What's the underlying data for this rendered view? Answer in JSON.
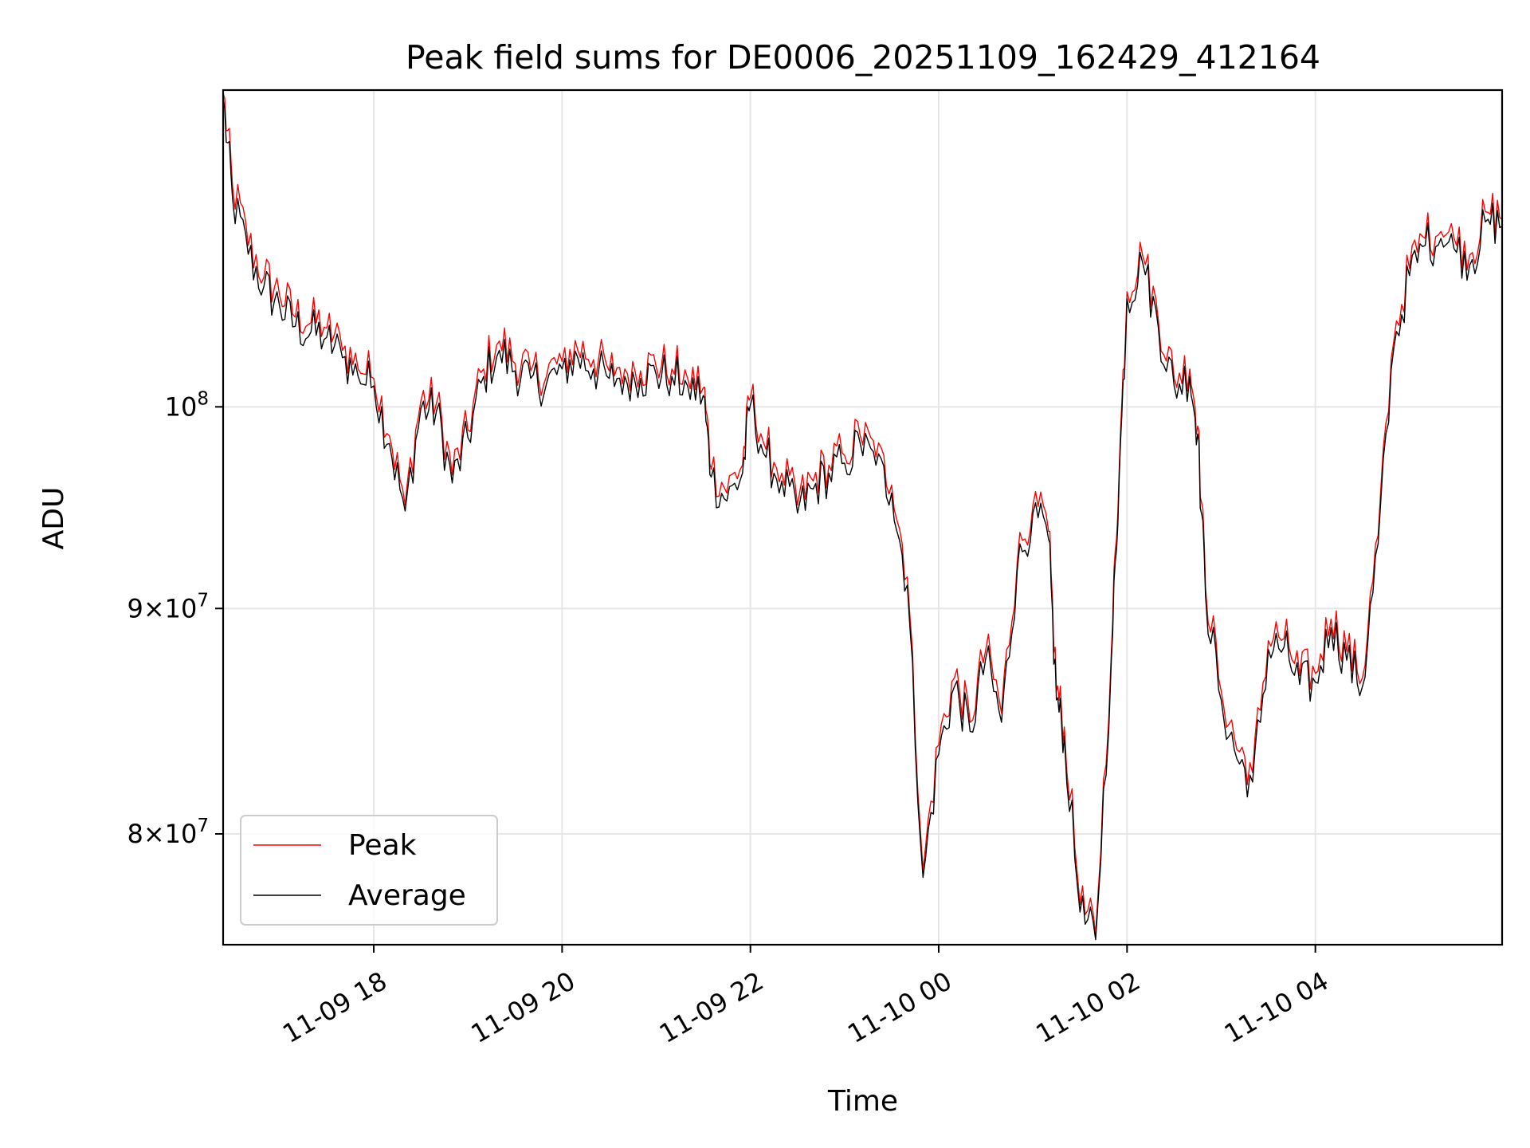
{
  "chart_data": {
    "type": "line",
    "title": "Peak field sums for DE0006_20251109_162429_412164",
    "xlabel": "Time",
    "ylabel": "ADU",
    "yscale": "log",
    "ylim": [
      75500000,
      118000000
    ],
    "xlim": [
      "2025-11-09 16:24",
      "2025-11-10 05:59"
    ],
    "grid": true,
    "legend_position": "lower-left",
    "x_ticks": [
      {
        "value": "2025-11-09 18:00",
        "label": "11-09 18"
      },
      {
        "value": "2025-11-09 20:00",
        "label": "11-09 20"
      },
      {
        "value": "2025-11-09 22:00",
        "label": "11-09 22"
      },
      {
        "value": "2025-11-10 00:00",
        "label": "11-10 00"
      },
      {
        "value": "2025-11-10 02:00",
        "label": "11-10 02"
      },
      {
        "value": "2025-11-10 04:00",
        "label": "11-10 04"
      }
    ],
    "y_ticks": [
      {
        "value": 80000000,
        "mantissa": "8",
        "exp": "7",
        "label": "8 × 10^7"
      },
      {
        "value": 90000000,
        "mantissa": "9",
        "exp": "7",
        "label": "9 × 10^7"
      },
      {
        "value": 100000000,
        "mantissa": "",
        "exp": "8",
        "label": "10^8"
      }
    ],
    "series": [
      {
        "name": "Peak",
        "color": "#ff0000",
        "points": [
          [
            "2025-11-09 16:24",
            117800000
          ],
          [
            "2025-11-09 16:30",
            112200000
          ],
          [
            "2025-11-09 16:40",
            108800000
          ],
          [
            "2025-11-09 16:50",
            107000000
          ],
          [
            "2025-11-09 17:00",
            106000000
          ],
          [
            "2025-11-09 17:10",
            104800000
          ],
          [
            "2025-11-09 17:20",
            104500000
          ],
          [
            "2025-11-09 17:30",
            104200000
          ],
          [
            "2025-11-09 17:40",
            103000000
          ],
          [
            "2025-11-09 17:50",
            102000000
          ],
          [
            "2025-11-09 18:00",
            101500000
          ],
          [
            "2025-11-09 18:10",
            98500000
          ],
          [
            "2025-11-09 18:20",
            95000000
          ],
          [
            "2025-11-09 18:30",
            100300000
          ],
          [
            "2025-11-09 18:40",
            100200000
          ],
          [
            "2025-11-09 18:50",
            96500000
          ],
          [
            "2025-11-09 19:00",
            98800000
          ],
          [
            "2025-11-09 19:10",
            102000000
          ],
          [
            "2025-11-09 19:20",
            103500000
          ],
          [
            "2025-11-09 19:30",
            102300000
          ],
          [
            "2025-11-09 19:40",
            101900000
          ],
          [
            "2025-11-09 19:50",
            101600000
          ],
          [
            "2025-11-09 20:00",
            102400000
          ],
          [
            "2025-11-09 20:10",
            103000000
          ],
          [
            "2025-11-09 20:20",
            102500000
          ],
          [
            "2025-11-09 20:30",
            101900000
          ],
          [
            "2025-11-09 20:40",
            102000000
          ],
          [
            "2025-11-09 20:50",
            101900000
          ],
          [
            "2025-11-09 21:00",
            102100000
          ],
          [
            "2025-11-09 21:10",
            102000000
          ],
          [
            "2025-11-09 21:20",
            101500000
          ],
          [
            "2025-11-09 21:30",
            101000000
          ],
          [
            "2025-11-09 21:35",
            96800000
          ],
          [
            "2025-11-09 21:45",
            95600000
          ],
          [
            "2025-11-09 21:55",
            97000000
          ],
          [
            "2025-11-09 22:00",
            100500000
          ],
          [
            "2025-11-09 22:10",
            97800000
          ],
          [
            "2025-11-09 22:20",
            96600000
          ],
          [
            "2025-11-09 22:30",
            95000000
          ],
          [
            "2025-11-09 22:40",
            96200000
          ],
          [
            "2025-11-09 22:50",
            97000000
          ],
          [
            "2025-11-09 23:00",
            97500000
          ],
          [
            "2025-11-09 23:10",
            98500000
          ],
          [
            "2025-11-09 23:20",
            97400000
          ],
          [
            "2025-11-09 23:30",
            96000000
          ],
          [
            "2025-11-09 23:40",
            91500000
          ],
          [
            "2025-11-09 23:50",
            78500000
          ],
          [
            "2025-11-10 00:00",
            83800000
          ],
          [
            "2025-11-10 00:10",
            86800000
          ],
          [
            "2025-11-10 00:20",
            84800000
          ],
          [
            "2025-11-10 00:30",
            88100000
          ],
          [
            "2025-11-10 00:40",
            85200000
          ],
          [
            "2025-11-10 00:50",
            92200000
          ],
          [
            "2025-11-10 01:00",
            95000000
          ],
          [
            "2025-11-10 01:10",
            93700000
          ],
          [
            "2025-11-10 01:15",
            86200000
          ],
          [
            "2025-11-10 01:20",
            84600000
          ],
          [
            "2025-11-10 01:30",
            77100000
          ],
          [
            "2025-11-10 01:40",
            75900000
          ],
          [
            "2025-11-10 01:50",
            88000000
          ],
          [
            "2025-11-10 01:55",
            96800000
          ],
          [
            "2025-11-10 02:00",
            106200000
          ],
          [
            "2025-11-10 02:10",
            108200000
          ],
          [
            "2025-11-10 02:20",
            104600000
          ],
          [
            "2025-11-10 02:30",
            101500000
          ],
          [
            "2025-11-10 02:40",
            102000000
          ],
          [
            "2025-11-10 02:45",
            99000000
          ],
          [
            "2025-11-10 02:50",
            91000000
          ],
          [
            "2025-11-10 03:00",
            86200000
          ],
          [
            "2025-11-10 03:10",
            83600000
          ],
          [
            "2025-11-10 03:20",
            82600000
          ],
          [
            "2025-11-10 03:30",
            88500000
          ],
          [
            "2025-11-10 03:40",
            88600000
          ],
          [
            "2025-11-10 03:50",
            86900000
          ],
          [
            "2025-11-10 04:00",
            87000000
          ],
          [
            "2025-11-10 04:10",
            89500000
          ],
          [
            "2025-11-10 04:20",
            88000000
          ],
          [
            "2025-11-10 04:30",
            86800000
          ],
          [
            "2025-11-10 04:40",
            93500000
          ],
          [
            "2025-11-10 04:50",
            103500000
          ],
          [
            "2025-11-10 05:00",
            107500000
          ],
          [
            "2025-11-10 05:10",
            109200000
          ],
          [
            "2025-11-10 05:20",
            109600000
          ],
          [
            "2025-11-10 05:30",
            108800000
          ],
          [
            "2025-11-10 05:40",
            108400000
          ],
          [
            "2025-11-10 05:50",
            110700000
          ],
          [
            "2025-11-10 05:59",
            110300000
          ]
        ]
      },
      {
        "name": "Average",
        "color": "#000000",
        "points": [
          [
            "2025-11-09 16:24",
            117400000
          ],
          [
            "2025-11-09 16:30",
            111500000
          ],
          [
            "2025-11-09 16:40",
            108300000
          ],
          [
            "2025-11-09 16:50",
            106500000
          ],
          [
            "2025-11-09 17:00",
            105400000
          ],
          [
            "2025-11-09 17:10",
            104300000
          ],
          [
            "2025-11-09 17:20",
            104000000
          ],
          [
            "2025-11-09 17:30",
            103700000
          ],
          [
            "2025-11-09 17:40",
            102600000
          ],
          [
            "2025-11-09 17:50",
            101600000
          ],
          [
            "2025-11-09 18:00",
            101100000
          ],
          [
            "2025-11-09 18:10",
            98100000
          ],
          [
            "2025-11-09 18:20",
            94700000
          ],
          [
            "2025-11-09 18:30",
            99900000
          ],
          [
            "2025-11-09 18:40",
            99800000
          ],
          [
            "2025-11-09 18:50",
            96100000
          ],
          [
            "2025-11-09 19:00",
            98400000
          ],
          [
            "2025-11-09 19:10",
            101600000
          ],
          [
            "2025-11-09 19:20",
            103000000
          ],
          [
            "2025-11-09 19:30",
            101900000
          ],
          [
            "2025-11-09 19:40",
            101500000
          ],
          [
            "2025-11-09 19:50",
            101200000
          ],
          [
            "2025-11-09 20:00",
            102000000
          ],
          [
            "2025-11-09 20:10",
            102600000
          ],
          [
            "2025-11-09 20:20",
            102000000
          ],
          [
            "2025-11-09 20:30",
            101500000
          ],
          [
            "2025-11-09 20:40",
            101600000
          ],
          [
            "2025-11-09 20:50",
            101500000
          ],
          [
            "2025-11-09 21:00",
            101700000
          ],
          [
            "2025-11-09 21:10",
            101600000
          ],
          [
            "2025-11-09 21:20",
            101100000
          ],
          [
            "2025-11-09 21:30",
            100600000
          ],
          [
            "2025-11-09 21:35",
            96400000
          ],
          [
            "2025-11-09 21:45",
            95200000
          ],
          [
            "2025-11-09 21:55",
            96600000
          ],
          [
            "2025-11-09 22:00",
            100100000
          ],
          [
            "2025-11-09 22:10",
            97400000
          ],
          [
            "2025-11-09 22:20",
            96200000
          ],
          [
            "2025-11-09 22:30",
            94600000
          ],
          [
            "2025-11-09 22:40",
            95800000
          ],
          [
            "2025-11-09 22:50",
            96600000
          ],
          [
            "2025-11-09 23:00",
            97100000
          ],
          [
            "2025-11-09 23:10",
            98100000
          ],
          [
            "2025-11-09 23:20",
            97000000
          ],
          [
            "2025-11-09 23:30",
            95600000
          ],
          [
            "2025-11-09 23:40",
            91100000
          ],
          [
            "2025-11-09 23:50",
            78200000
          ],
          [
            "2025-11-10 00:00",
            83400000
          ],
          [
            "2025-11-10 00:10",
            86400000
          ],
          [
            "2025-11-10 00:20",
            84400000
          ],
          [
            "2025-11-10 00:30",
            87700000
          ],
          [
            "2025-11-10 00:40",
            84800000
          ],
          [
            "2025-11-10 00:50",
            91800000
          ],
          [
            "2025-11-10 01:00",
            94600000
          ],
          [
            "2025-11-10 01:10",
            93300000
          ],
          [
            "2025-11-10 01:15",
            85800000
          ],
          [
            "2025-11-10 01:20",
            84200000
          ],
          [
            "2025-11-10 01:30",
            76800000
          ],
          [
            "2025-11-10 01:40",
            75700000
          ],
          [
            "2025-11-10 01:50",
            87600000
          ],
          [
            "2025-11-10 01:55",
            96400000
          ],
          [
            "2025-11-10 02:00",
            105800000
          ],
          [
            "2025-11-10 02:10",
            107800000
          ],
          [
            "2025-11-10 02:20",
            104200000
          ],
          [
            "2025-11-10 02:30",
            101100000
          ],
          [
            "2025-11-10 02:40",
            101600000
          ],
          [
            "2025-11-10 02:45",
            98600000
          ],
          [
            "2025-11-10 02:50",
            90600000
          ],
          [
            "2025-11-10 03:00",
            85800000
          ],
          [
            "2025-11-10 03:10",
            83200000
          ],
          [
            "2025-11-10 03:20",
            82200000
          ],
          [
            "2025-11-10 03:30",
            88100000
          ],
          [
            "2025-11-10 03:40",
            88200000
          ],
          [
            "2025-11-10 03:50",
            86500000
          ],
          [
            "2025-11-10 04:00",
            86600000
          ],
          [
            "2025-11-10 04:10",
            89100000
          ],
          [
            "2025-11-10 04:20",
            87600000
          ],
          [
            "2025-11-10 04:30",
            86400000
          ],
          [
            "2025-11-10 04:40",
            93100000
          ],
          [
            "2025-11-10 04:50",
            103100000
          ],
          [
            "2025-11-10 05:00",
            107100000
          ],
          [
            "2025-11-10 05:10",
            108800000
          ],
          [
            "2025-11-10 05:20",
            109200000
          ],
          [
            "2025-11-10 05:30",
            108400000
          ],
          [
            "2025-11-10 05:40",
            108000000
          ],
          [
            "2025-11-10 05:50",
            110300000
          ],
          [
            "2025-11-10 05:59",
            109900000
          ]
        ]
      }
    ]
  }
}
